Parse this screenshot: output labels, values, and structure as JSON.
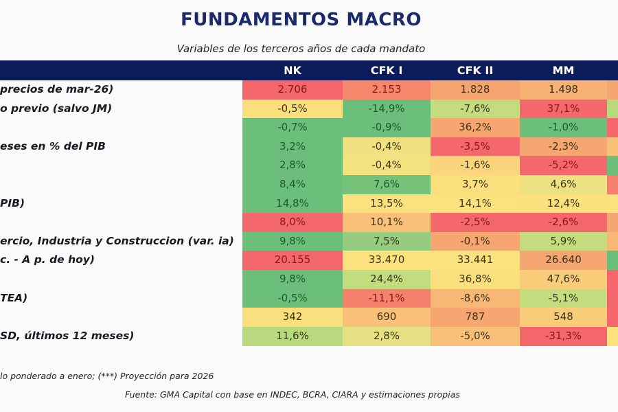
{
  "title": "FUNDAMENTOS MACRO",
  "subtitle": "Variables de los terceros años de cada mandato",
  "footnote": "lo ponderado a enero; (***) Proyección para 2026",
  "source": "Fuente: GMA Capital con base en INDEC, BCRA, CIARA y estimaciones propias",
  "colors": {
    "header": "#0c1c5a",
    "title": "#1b2a6b"
  },
  "chart_data": {
    "type": "table",
    "title": "FUNDAMENTOS MACRO",
    "subtitle": "Variables de los terceros años de cada mandato",
    "columns": [
      "NK",
      "CFK I",
      "CFK II",
      "MM",
      ""
    ],
    "rows": [
      {
        "label": "precios de mar-26)",
        "values": [
          "2.706",
          "2.153",
          "1.828",
          "1.498",
          ""
        ],
        "colors": [
          "#f4676a",
          "#f5886b",
          "#f6a46f",
          "#f7b273",
          "#f6a670"
        ]
      },
      {
        "label": "o previo (salvo JM)",
        "values": [
          "-0,5%",
          "-14,9%",
          "-7,6%",
          "37,1%",
          ""
        ],
        "colors": [
          "#fbdf7c",
          "#6cbf7b",
          "#c2dc7e",
          "#f4676a",
          "#b9d97e"
        ]
      },
      {
        "label": "",
        "values": [
          "-0,7%",
          "-0,9%",
          "36,2%",
          "-1,0%",
          ""
        ],
        "colors": [
          "#6cbf7b",
          "#6cbf7b",
          "#f6a670",
          "#6cbf7b",
          "#f4676a"
        ]
      },
      {
        "label": "eses en % del PIB",
        "values": [
          "3,2%",
          "-0,4%",
          "-3,5%",
          "-2,3%",
          ""
        ],
        "colors": [
          "#6cbf7b",
          "#f1e182",
          "#f4676a",
          "#f6a670",
          "#f8c079"
        ]
      },
      {
        "label": "",
        "values": [
          "2,8%",
          "-0,4%",
          "-1,6%",
          "-5,2%",
          ""
        ],
        "colors": [
          "#6cbf7b",
          "#f4e180",
          "#fbd47b",
          "#f4676a",
          "#6cbf7b"
        ]
      },
      {
        "label": "",
        "values": [
          "8,4%",
          "7,6%",
          "3,7%",
          "4,6%",
          ""
        ],
        "colors": [
          "#6cbf7b",
          "#75c27b",
          "#fbdf7c",
          "#ece282",
          "#f5806b"
        ]
      },
      {
        "label": "PIB)",
        "values": [
          "14,8%",
          "13,5%",
          "14,1%",
          "12,4%",
          ""
        ],
        "colors": [
          "#6cbf7b",
          "#fbe27e",
          "#fbe27e",
          "#fbe07d",
          "#fbe27e"
        ]
      },
      {
        "label": "",
        "values": [
          "8,0%",
          "10,1%",
          "-2,5%",
          "-2,6%",
          ""
        ],
        "colors": [
          "#f4676a",
          "#f8c079",
          "#f4676a",
          "#f4676a",
          "#f6a670"
        ]
      },
      {
        "label": "ercio, Industria y Construccion (var. ia)",
        "values": [
          "9,8%",
          "7,5%",
          "-0,1%",
          "5,9%",
          ""
        ],
        "colors": [
          "#6cbf7b",
          "#96cc7d",
          "#f6a670",
          "#c2dc7e",
          "#f8b875"
        ]
      },
      {
        "label": "c. - A p. de hoy)",
        "values": [
          "20.155",
          "33.470",
          "33.441",
          "26.640",
          ""
        ],
        "colors": [
          "#f4676a",
          "#fbe27e",
          "#fbe27e",
          "#f6a670",
          "#6cbf7b"
        ]
      },
      {
        "label": "",
        "values": [
          "9,8%",
          "24,4%",
          "36,8%",
          "47,6%",
          ""
        ],
        "colors": [
          "#6cbf7b",
          "#c2dc7e",
          "#fbdf7c",
          "#f9cc7a",
          "#f4676a"
        ]
      },
      {
        "label": "TEA)",
        "values": [
          "-0,5%",
          "-11,1%",
          "-8,6%",
          "-5,1%",
          ""
        ],
        "colors": [
          "#6cbf7b",
          "#f5806b",
          "#f8b875",
          "#c2dc7e",
          "#f4676a"
        ]
      },
      {
        "label": "",
        "values": [
          "342",
          "690",
          "787",
          "548",
          ""
        ],
        "colors": [
          "#fbdf7c",
          "#f8c079",
          "#f6a670",
          "#f9cc7a",
          "#f4676a"
        ]
      },
      {
        "label": "SD, últimos 12 meses)",
        "values": [
          "11,6%",
          "2,8%",
          "-5,0%",
          "-31,3%",
          ""
        ],
        "colors": [
          "#b9d97e",
          "#e5e182",
          "#f8c079",
          "#f4676a",
          "#fbe27e"
        ]
      }
    ]
  }
}
